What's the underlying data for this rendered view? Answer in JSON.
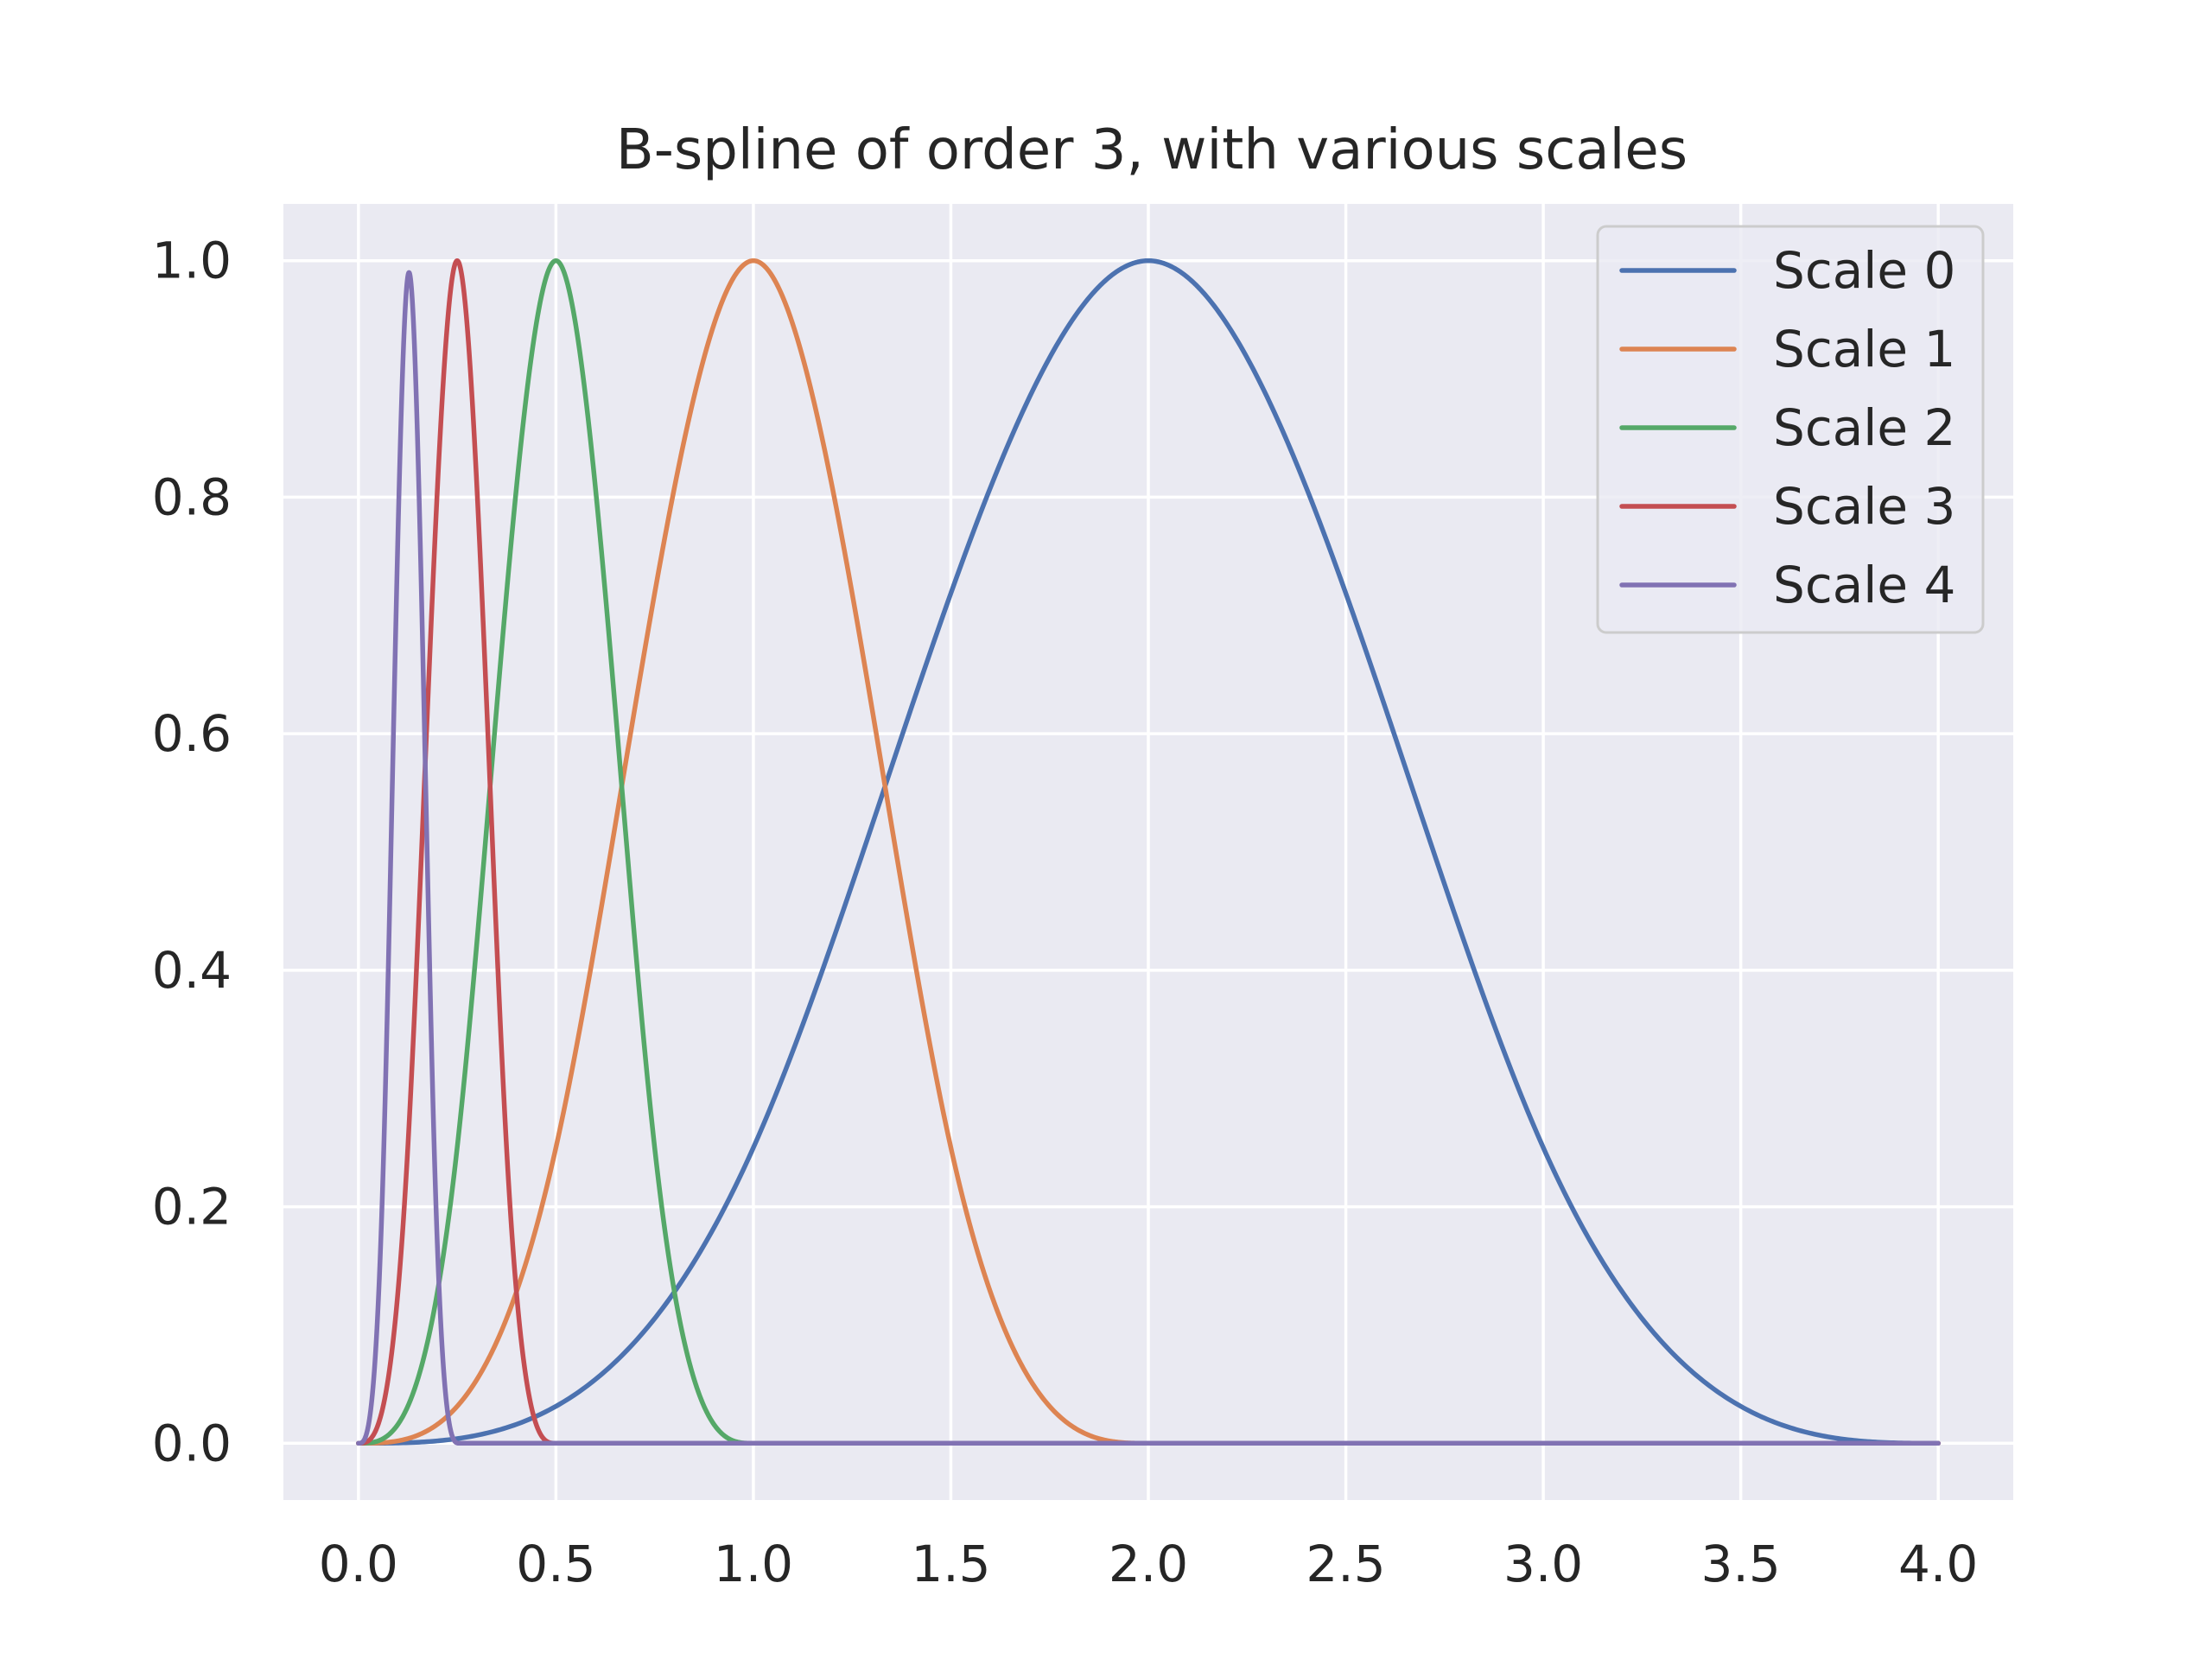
{
  "chart_data": {
    "type": "line",
    "title": "B-spline of order 3, with various scales",
    "xlabel": "",
    "ylabel": "",
    "xlim": [
      -0.19,
      4.19
    ],
    "ylim": [
      -0.048,
      1.048
    ],
    "xticks": [
      0.0,
      0.5,
      1.0,
      1.5,
      2.0,
      2.5,
      3.0,
      3.5,
      4.0
    ],
    "xtick_labels": [
      "0.0",
      "0.5",
      "1.0",
      "1.5",
      "2.0",
      "2.5",
      "3.0",
      "3.5",
      "4.0"
    ],
    "yticks": [
      0.0,
      0.2,
      0.4,
      0.6,
      0.8,
      1.0
    ],
    "ytick_labels": [
      "0.0",
      "0.2",
      "0.4",
      "0.6",
      "0.8",
      "1.0"
    ],
    "grid": true,
    "legend_position": "top-right",
    "background_color": "#eaeaf2",
    "grid_color": "#ffffff",
    "series": [
      {
        "name": "Scale 0",
        "color": "#4c72b0",
        "x": [
          0.0,
          0.25,
          0.5,
          0.75,
          1.0,
          1.25,
          1.5,
          1.75,
          2.0,
          2.25,
          2.5,
          2.75,
          3.0,
          3.25,
          3.5,
          3.75,
          4.0
        ],
        "y": [
          0.0,
          0.004,
          0.031,
          0.105,
          0.25,
          0.457,
          0.688,
          0.887,
          1.0,
          0.887,
          0.688,
          0.457,
          0.25,
          0.105,
          0.031,
          0.004,
          0.0
        ]
      },
      {
        "name": "Scale 1",
        "color": "#dd8452",
        "x": [
          0.0,
          0.125,
          0.25,
          0.375,
          0.5,
          0.625,
          0.75,
          0.875,
          1.0,
          1.125,
          1.25,
          1.375,
          1.5,
          1.625,
          1.75,
          1.875,
          2.0,
          4.0
        ],
        "y": [
          0.0,
          0.004,
          0.031,
          0.105,
          0.25,
          0.457,
          0.688,
          0.887,
          1.0,
          0.887,
          0.688,
          0.457,
          0.25,
          0.105,
          0.031,
          0.004,
          0.0,
          0.0
        ]
      },
      {
        "name": "Scale 2",
        "color": "#55a868",
        "x": [
          0.0,
          0.0625,
          0.125,
          0.1875,
          0.25,
          0.3125,
          0.375,
          0.4375,
          0.5,
          0.5625,
          0.625,
          0.6875,
          0.75,
          0.8125,
          0.875,
          0.9375,
          1.0,
          4.0
        ],
        "y": [
          0.0,
          0.004,
          0.031,
          0.105,
          0.25,
          0.457,
          0.688,
          0.887,
          1.0,
          0.887,
          0.688,
          0.457,
          0.25,
          0.105,
          0.031,
          0.004,
          0.0,
          0.0
        ]
      },
      {
        "name": "Scale 3",
        "color": "#c44e52",
        "x": [
          0.0,
          0.03125,
          0.0625,
          0.09375,
          0.125,
          0.15625,
          0.1875,
          0.21875,
          0.25,
          0.28125,
          0.3125,
          0.34375,
          0.375,
          0.40625,
          0.4375,
          0.46875,
          0.5,
          4.0
        ],
        "y": [
          0.0,
          0.004,
          0.031,
          0.105,
          0.25,
          0.457,
          0.688,
          0.887,
          1.0,
          0.887,
          0.688,
          0.457,
          0.25,
          0.105,
          0.031,
          0.004,
          0.0,
          0.0
        ]
      },
      {
        "name": "Scale 4",
        "color": "#8172b3",
        "x": [
          0.0,
          0.016,
          0.032,
          0.048,
          0.064,
          0.08,
          0.096,
          0.112,
          0.128,
          0.144,
          0.16,
          0.176,
          0.192,
          0.208,
          0.224,
          0.24,
          0.256,
          4.0
        ],
        "y": [
          0.0,
          0.004,
          0.031,
          0.105,
          0.25,
          0.457,
          0.688,
          0.887,
          0.99,
          0.887,
          0.688,
          0.457,
          0.25,
          0.105,
          0.031,
          0.004,
          0.0,
          0.0
        ]
      }
    ]
  }
}
